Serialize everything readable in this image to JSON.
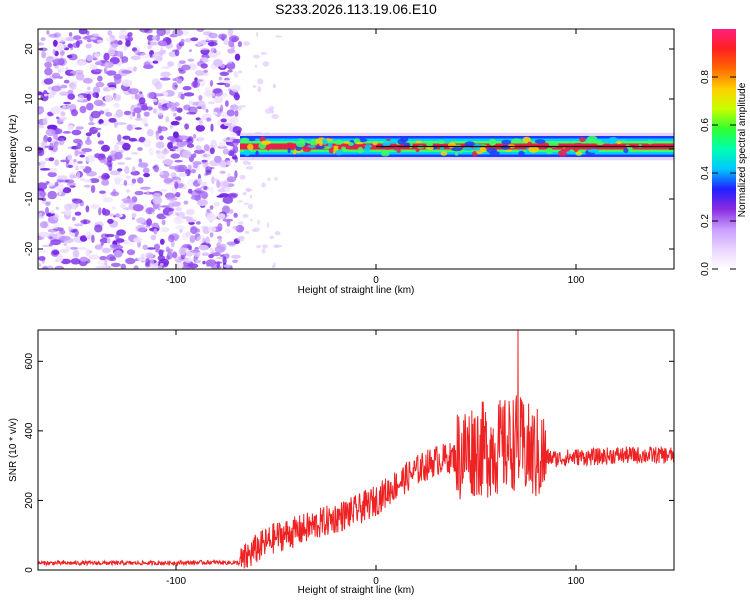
{
  "title": "S233.2026.113.19.06.E10",
  "colors": {
    "snr_line": "#ee2222",
    "speckle": "#8a3df0",
    "band_core": "#e8204a",
    "background": "#ffffff"
  },
  "chart_data": [
    {
      "type": "heatmap",
      "xlabel": "Height of straight line (km)",
      "ylabel": "Frequency (Hz)",
      "xlim": [
        -169,
        149
      ],
      "ylim": [
        -24,
        24
      ],
      "xticks": [
        -100,
        0,
        100
      ],
      "yticks": [
        -20,
        -10,
        0,
        10,
        20
      ],
      "grid": false,
      "description_values": {
        "noise_region_x": [
          -169,
          -68
        ],
        "signal_onset_x": -68,
        "signal_frequency": 0.5
      },
      "colorbar": {
        "label": "Normalized spectral amplitude",
        "range": [
          0.0,
          1.0
        ],
        "ticks": [
          0.0,
          0.2,
          0.4,
          0.6,
          0.8
        ],
        "colormap": [
          "#ffffff",
          "#e9d4ff",
          "#c89cff",
          "#8a2be2",
          "#2020ff",
          "#00c8ff",
          "#00ffb0",
          "#30ff30",
          "#c8ff00",
          "#ffd000",
          "#ff6a00",
          "#ff2020",
          "#ff2080"
        ]
      }
    },
    {
      "type": "line",
      "xlabel": "Height of straight line (km)",
      "ylabel": "SNR (10 * v/v)",
      "xlim": [
        -169,
        149
      ],
      "ylim": [
        0,
        690
      ],
      "xticks": [
        -100,
        0,
        100
      ],
      "yticks": [
        0,
        200,
        400,
        600
      ],
      "grid": false,
      "series": [
        {
          "x": [
            -169,
            -140,
            -110,
            -80,
            -68,
            -60,
            -50,
            -40,
            -30,
            -20,
            -10,
            0,
            10,
            20,
            30,
            40,
            45,
            50,
            55,
            60,
            65,
            70,
            75,
            80,
            90,
            100,
            110,
            120,
            130,
            140,
            149
          ],
          "values": [
            20,
            20,
            20,
            22,
            20,
            60,
            95,
            110,
            130,
            150,
            170,
            200,
            245,
            285,
            315,
            325,
            340,
            350,
            345,
            350,
            355,
            370,
            345,
            330,
            320,
            325,
            325,
            330,
            330,
            330,
            330
          ]
        }
      ],
      "annotations_peak": {
        "x": 71,
        "y": 690
      }
    }
  ]
}
